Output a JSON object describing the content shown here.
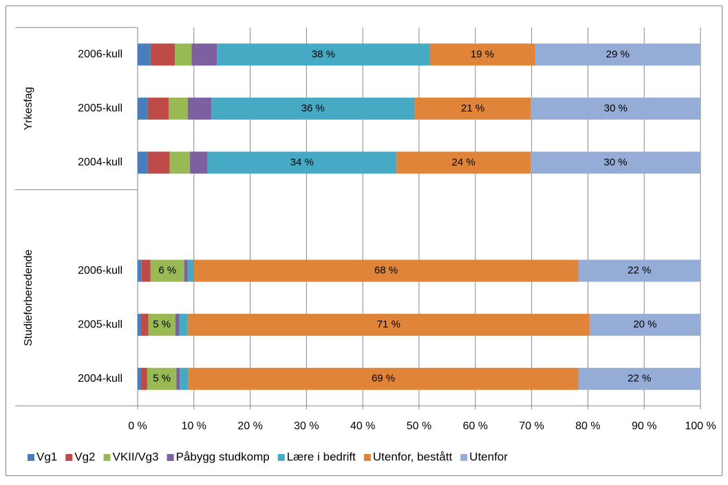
{
  "chart_data": {
    "type": "stacked_barh",
    "categories": [
      "2006-kull",
      "2005-kull",
      "2004-kull",
      null,
      "2006-kull",
      "2005-kull",
      "2004-kull"
    ],
    "groups": [
      {
        "name": "Yrkesfag",
        "size": 3
      },
      {
        "name": "Studieforberedende",
        "size": 4
      }
    ],
    "series": [
      {
        "name": "Vg1",
        "color": "#4a7ebb",
        "values": [
          2.3,
          1.8,
          1.8,
          null,
          0.7,
          0.6,
          0.6
        ]
      },
      {
        "name": "Vg2",
        "color": "#be4b48",
        "values": [
          4.3,
          3.7,
          3.9,
          null,
          1.6,
          1.3,
          1.1
        ]
      },
      {
        "name": "VKII/Vg3",
        "color": "#98b954",
        "values": [
          3.0,
          3.4,
          3.6,
          null,
          6.0,
          4.8,
          5.2
        ],
        "value_labels": [
          null,
          null,
          null,
          null,
          "6 %",
          "5 %",
          "5 %"
        ]
      },
      {
        "name": "Påbygg studkomp",
        "color": "#7d60a0",
        "values": [
          4.5,
          4.2,
          3.1,
          null,
          0.6,
          0.7,
          0.6
        ]
      },
      {
        "name": "Lære i bedrift",
        "color": "#46aac5",
        "values": [
          37.8,
          36.1,
          33.6,
          null,
          1.1,
          1.5,
          1.5
        ],
        "value_labels": [
          "38 %",
          "36 %",
          "34 %",
          null,
          null,
          null,
          null
        ]
      },
      {
        "name": "Utenfor, bestått",
        "color": "#e0843a",
        "values": [
          18.7,
          20.7,
          23.8,
          null,
          68.3,
          71.4,
          69.3
        ],
        "value_labels": [
          "19 %",
          "21 %",
          "24 %",
          null,
          "68 %",
          "71 %",
          "69 %"
        ]
      },
      {
        "name": "Utenfor",
        "color": "#95acd6",
        "values": [
          29.4,
          30.1,
          30.2,
          null,
          21.7,
          19.7,
          21.7
        ],
        "value_labels": [
          "29 %",
          "30 %",
          "30 %",
          null,
          "22 %",
          "20 %",
          "22 %"
        ]
      }
    ],
    "xlim": [
      0,
      100
    ],
    "xticks": [
      {
        "value": 0,
        "label": "0 %"
      },
      {
        "value": 10,
        "label": "10 %"
      },
      {
        "value": 20,
        "label": "20 %"
      },
      {
        "value": 30,
        "label": "30 %"
      },
      {
        "value": 40,
        "label": "40 %"
      },
      {
        "value": 50,
        "label": "50 %"
      },
      {
        "value": 60,
        "label": "60 %"
      },
      {
        "value": 70,
        "label": "70 %"
      },
      {
        "value": 80,
        "label": "80 %"
      },
      {
        "value": 90,
        "label": "90 %"
      },
      {
        "value": 100,
        "label": "100 %"
      }
    ],
    "grid": true,
    "legend": "bottom"
  }
}
